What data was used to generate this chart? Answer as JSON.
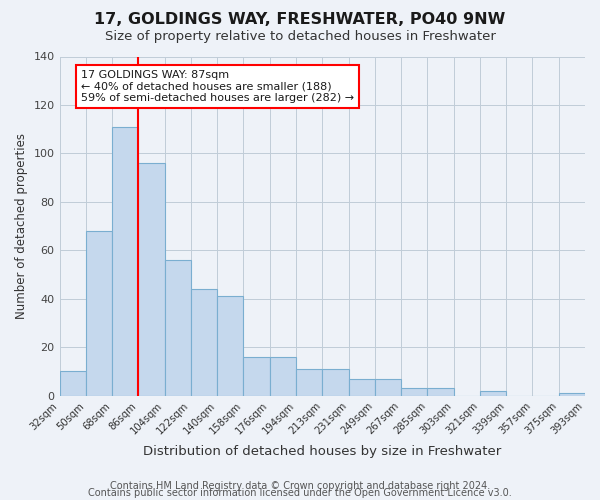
{
  "title": "17, GOLDINGS WAY, FRESHWATER, PO40 9NW",
  "subtitle": "Size of property relative to detached houses in Freshwater",
  "xlabel": "Distribution of detached houses by size in Freshwater",
  "ylabel": "Number of detached properties",
  "bar_values": [
    10,
    68,
    111,
    96,
    56,
    44,
    41,
    16,
    16,
    11,
    11,
    7,
    7,
    3,
    3,
    0,
    2,
    0,
    0,
    1
  ],
  "bin_labels": [
    "32sqm",
    "50sqm",
    "68sqm",
    "86sqm",
    "104sqm",
    "122sqm",
    "140sqm",
    "158sqm",
    "176sqm",
    "194sqm",
    "213sqm",
    "231sqm",
    "249sqm",
    "267sqm",
    "285sqm",
    "303sqm",
    "321sqm",
    "339sqm",
    "357sqm",
    "375sqm",
    "393sqm"
  ],
  "bar_color": "#c5d8ed",
  "bar_edge_color": "#7aaed0",
  "bar_edge_width": 0.8,
  "red_line_x": 3,
  "annotation_title": "17 GOLDINGS WAY: 87sqm",
  "annotation_line1": "← 40% of detached houses are smaller (188)",
  "annotation_line2": "59% of semi-detached houses are larger (282) →",
  "annotation_box_color": "white",
  "annotation_border_color": "red",
  "ylim": [
    0,
    140
  ],
  "yticks": [
    0,
    20,
    40,
    60,
    80,
    100,
    120,
    140
  ],
  "footer_line1": "Contains HM Land Registry data © Crown copyright and database right 2024.",
  "footer_line2": "Contains public sector information licensed under the Open Government Licence v3.0.",
  "background_color": "#eef2f8",
  "grid_color": "#c0ccd8",
  "title_fontsize": 11.5,
  "subtitle_fontsize": 9.5,
  "xlabel_fontsize": 9.5,
  "ylabel_fontsize": 8.5,
  "footer_fontsize": 7.0,
  "num_bins": 20
}
